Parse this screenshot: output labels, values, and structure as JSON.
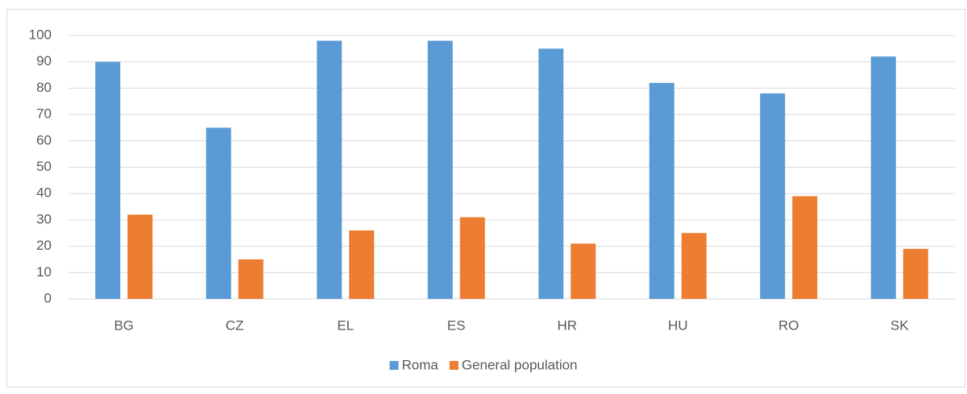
{
  "chart_data": {
    "type": "bar",
    "categories": [
      "BG",
      "CZ",
      "EL",
      "ES",
      "HR",
      "HU",
      "RO",
      "SK"
    ],
    "series": [
      {
        "name": "Roma",
        "color": "#5b9bd5",
        "values": [
          90,
          65,
          98,
          98,
          95,
          82,
          78,
          92
        ]
      },
      {
        "name": "General population",
        "color": "#ed7d31",
        "values": [
          32,
          15,
          26,
          31,
          21,
          25,
          39,
          19
        ]
      }
    ],
    "ylim": [
      0,
      100
    ],
    "yticks": [
      0,
      10,
      20,
      30,
      40,
      50,
      60,
      70,
      80,
      90,
      100
    ],
    "grid": true,
    "legend": "bottom"
  }
}
